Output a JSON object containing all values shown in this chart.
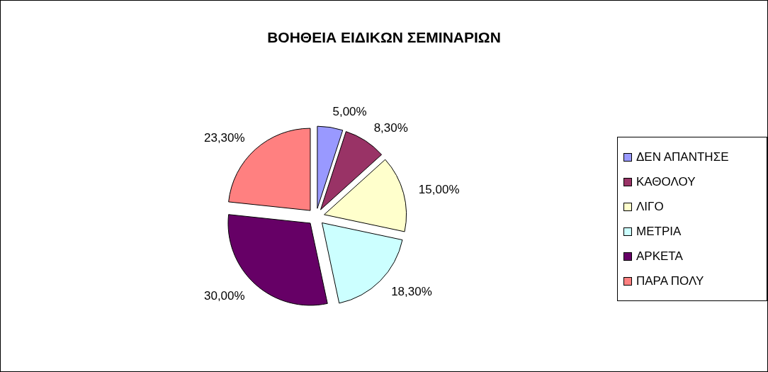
{
  "chart_data": {
    "type": "pie",
    "title": "ΒΟΗΘΕΙΑ ΕΙΔΙΚΩΝ ΣΕΜΙΝΑΡΙΩΝ",
    "categories": [
      "ΔΕΝ ΑΠΑΝΤΗΣΕ",
      "ΚΑΘΟΛΟΥ",
      "ΛΙΓΟ",
      "ΜΕΤΡΙΑ",
      "ΑΡΚΕΤΑ",
      "ΠΑΡΑ ΠΟΛΥ"
    ],
    "values": [
      5,
      8.3,
      15,
      18.3,
      30,
      23.3
    ],
    "colors": [
      "#9999ff",
      "#993366",
      "#ffffcc",
      "#ccffff",
      "#660066",
      "#ff8080"
    ],
    "value_labels": [
      "5,00%",
      "8,30%",
      "15,00%",
      "18,30%",
      "30,00%",
      "23,30%"
    ],
    "legend": "right"
  }
}
